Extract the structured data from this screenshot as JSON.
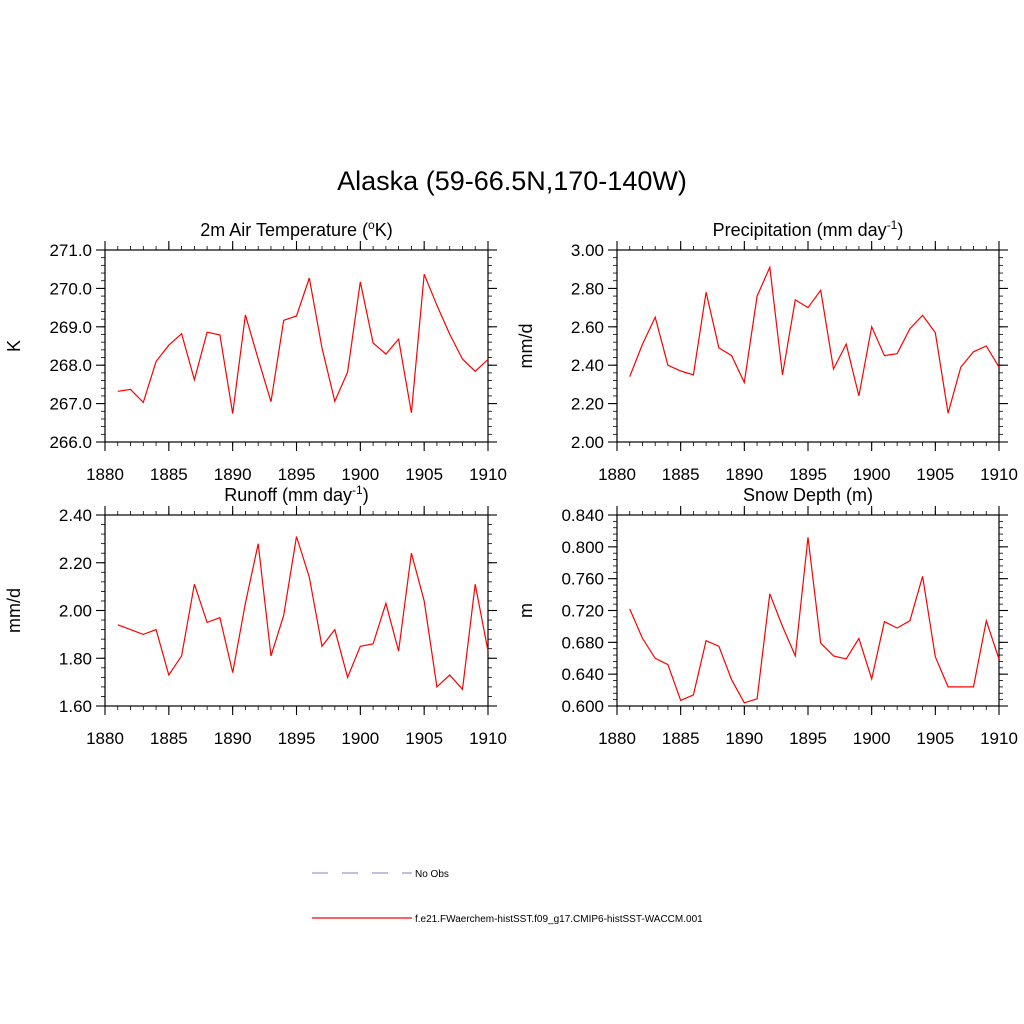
{
  "title": "Alaska (59-66.5N,170-140W)",
  "colors": {
    "model": "#ff0000",
    "obs": "#9a9ad8"
  },
  "legend": {
    "placement": "bottom-center",
    "entries": [
      {
        "label": "No Obs",
        "style": "dashed",
        "color": "#9a9ad8"
      },
      {
        "label": "f.e21.FWaerchem-histSST.f09_g17.CMIP6-histSST-WACCM.001",
        "style": "solid",
        "color": "#ff0000"
      }
    ]
  },
  "chart_data": [
    {
      "type": "line",
      "title_parts": [
        "2m Air Temperature (",
        "o",
        "K)"
      ],
      "title_mode": "sup-middle",
      "ylabel": "K",
      "xlim": [
        1880,
        1910
      ],
      "xticks": [
        1880,
        1885,
        1890,
        1895,
        1900,
        1905,
        1910
      ],
      "xtick_labels": [
        "1880",
        "1885",
        "1890",
        "1895",
        "1900",
        "1905",
        "1910"
      ],
      "ylim": [
        266.0,
        271.0
      ],
      "yticks": [
        266.0,
        267.0,
        268.0,
        269.0,
        270.0,
        271.0
      ],
      "ytick_labels": [
        "266.0",
        "267.0",
        "268.0",
        "269.0",
        "270.0",
        "271.0"
      ],
      "y_minor_step": 0.2,
      "x": [
        1881,
        1882,
        1883,
        1884,
        1885,
        1886,
        1887,
        1888,
        1889,
        1890,
        1891,
        1892,
        1893,
        1894,
        1895,
        1896,
        1897,
        1898,
        1899,
        1900,
        1901,
        1902,
        1903,
        1904,
        1905,
        1906,
        1907,
        1908,
        1909,
        1910
      ],
      "values": [
        267.32,
        267.37,
        267.03,
        268.1,
        268.52,
        268.82,
        267.62,
        268.86,
        268.79,
        266.74,
        269.31,
        268.16,
        267.05,
        269.17,
        269.28,
        270.27,
        268.45,
        267.06,
        267.82,
        270.17,
        268.58,
        268.29,
        268.68,
        266.76,
        270.37,
        269.56,
        268.81,
        268.16,
        267.84,
        268.15
      ],
      "series_color": "#ff0000"
    },
    {
      "type": "line",
      "title_parts": [
        "Precipitation (mm day",
        "-1",
        ")"
      ],
      "title_mode": "sup-middle",
      "ylabel": "mm/d",
      "xlim": [
        1880,
        1910
      ],
      "xticks": [
        1880,
        1885,
        1890,
        1895,
        1900,
        1905,
        1910
      ],
      "xtick_labels": [
        "1880",
        "1885",
        "1890",
        "1895",
        "1900",
        "1905",
        "1910"
      ],
      "ylim": [
        2.0,
        3.0
      ],
      "yticks": [
        2.0,
        2.2,
        2.4,
        2.6,
        2.8,
        3.0
      ],
      "ytick_labels": [
        "2.00",
        "2.20",
        "2.40",
        "2.60",
        "2.80",
        "3.00"
      ],
      "y_minor_step": 0.04,
      "x": [
        1881,
        1882,
        1883,
        1884,
        1885,
        1886,
        1887,
        1888,
        1889,
        1890,
        1891,
        1892,
        1893,
        1894,
        1895,
        1896,
        1897,
        1898,
        1899,
        1900,
        1901,
        1902,
        1903,
        1904,
        1905,
        1906,
        1907,
        1908,
        1909,
        1910
      ],
      "values": [
        2.34,
        2.51,
        2.65,
        2.4,
        2.37,
        2.35,
        2.78,
        2.49,
        2.45,
        2.31,
        2.76,
        2.91,
        2.35,
        2.74,
        2.7,
        2.79,
        2.38,
        2.51,
        2.24,
        2.6,
        2.45,
        2.46,
        2.59,
        2.66,
        2.57,
        2.15,
        2.39,
        2.47,
        2.5,
        2.39
      ],
      "series_color": "#ff0000"
    },
    {
      "type": "line",
      "title_parts": [
        "Runoff (mm day",
        "-1",
        ")"
      ],
      "title_mode": "sup-middle",
      "ylabel": "mm/d",
      "xlim": [
        1880,
        1910
      ],
      "xticks": [
        1880,
        1885,
        1890,
        1895,
        1900,
        1905,
        1910
      ],
      "xtick_labels": [
        "1880",
        "1885",
        "1890",
        "1895",
        "1900",
        "1905",
        "1910"
      ],
      "ylim": [
        1.6,
        2.4
      ],
      "yticks": [
        1.6,
        1.8,
        2.0,
        2.2,
        2.4
      ],
      "ytick_labels": [
        "1.60",
        "1.80",
        "2.00",
        "2.20",
        "2.40"
      ],
      "y_minor_step": 0.04,
      "x": [
        1881,
        1882,
        1883,
        1884,
        1885,
        1886,
        1887,
        1888,
        1889,
        1890,
        1891,
        1892,
        1893,
        1894,
        1895,
        1896,
        1897,
        1898,
        1899,
        1900,
        1901,
        1902,
        1903,
        1904,
        1905,
        1906,
        1907,
        1908,
        1909,
        1910
      ],
      "values": [
        1.94,
        1.92,
        1.9,
        1.92,
        1.73,
        1.81,
        2.11,
        1.95,
        1.97,
        1.74,
        2.03,
        2.28,
        1.81,
        1.98,
        2.31,
        2.14,
        1.85,
        1.92,
        1.72,
        1.85,
        1.86,
        2.03,
        1.83,
        2.24,
        2.04,
        1.68,
        1.73,
        1.67,
        2.11,
        1.83
      ],
      "series_color": "#ff0000"
    },
    {
      "type": "line",
      "title_parts": [
        "Snow Depth (m)"
      ],
      "title_mode": "plain",
      "ylabel": "m",
      "xlim": [
        1880,
        1910
      ],
      "xticks": [
        1880,
        1885,
        1890,
        1895,
        1900,
        1905,
        1910
      ],
      "xtick_labels": [
        "1880",
        "1885",
        "1890",
        "1895",
        "1900",
        "1905",
        "1910"
      ],
      "ylim": [
        0.6,
        0.84
      ],
      "yticks": [
        0.6,
        0.64,
        0.68,
        0.72,
        0.76,
        0.8,
        0.84
      ],
      "ytick_labels": [
        "0.600",
        "0.640",
        "0.680",
        "0.720",
        "0.760",
        "0.800",
        "0.840"
      ],
      "y_minor_step": 0.008,
      "x": [
        1881,
        1882,
        1883,
        1884,
        1885,
        1886,
        1887,
        1888,
        1889,
        1890,
        1891,
        1892,
        1893,
        1894,
        1895,
        1896,
        1897,
        1898,
        1899,
        1900,
        1901,
        1902,
        1903,
        1904,
        1905,
        1906,
        1907,
        1908,
        1909,
        1910
      ],
      "values": [
        0.722,
        0.685,
        0.66,
        0.652,
        0.607,
        0.614,
        0.682,
        0.675,
        0.633,
        0.604,
        0.609,
        0.741,
        0.7,
        0.663,
        0.812,
        0.679,
        0.663,
        0.659,
        0.685,
        0.634,
        0.706,
        0.698,
        0.707,
        0.763,
        0.662,
        0.624,
        0.624,
        0.624,
        0.707,
        0.659
      ],
      "series_color": "#ff0000"
    }
  ]
}
